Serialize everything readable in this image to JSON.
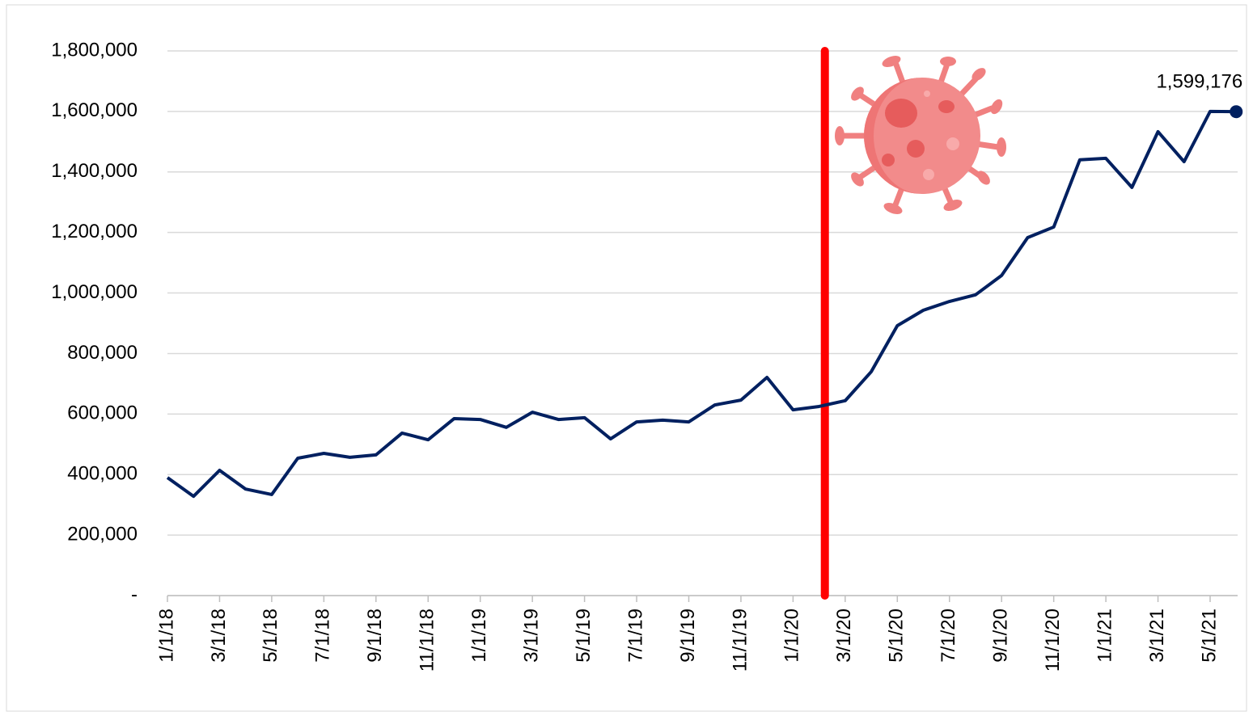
{
  "chart_data": {
    "type": "line",
    "categories": [
      "1/1/18",
      null,
      "3/1/18",
      null,
      "5/1/18",
      null,
      "7/1/18",
      null,
      "9/1/18",
      null,
      "11/1/18",
      null,
      "1/1/19",
      null,
      "3/1/19",
      null,
      "5/1/19",
      null,
      "7/1/19",
      null,
      "9/1/19",
      null,
      "11/1/19",
      null,
      "1/1/20",
      null,
      "3/1/20",
      null,
      "5/1/20",
      null,
      "7/1/20",
      null,
      "9/1/20",
      null,
      "11/1/20",
      null,
      "1/1/21",
      null,
      "3/1/21",
      null,
      "5/1/21",
      null
    ],
    "series": [
      {
        "name": null,
        "color": "#002060",
        "values": [
          390000,
          328000,
          414000,
          352000,
          334000,
          454000,
          470000,
          457000,
          465000,
          537000,
          515000,
          585000,
          582000,
          556000,
          606000,
          582000,
          588000,
          518000,
          574000,
          580000,
          574000,
          630000,
          646000,
          721000,
          614000,
          625000,
          644000,
          740000,
          892000,
          943000,
          972000,
          994000,
          1058000,
          1183000,
          1218000,
          1440000,
          1445000,
          1349000,
          1533000,
          1434000,
          1600000,
          1599176
        ],
        "value_labels": [
          null,
          null,
          null,
          null,
          null,
          null,
          null,
          null,
          null,
          null,
          null,
          null,
          null,
          null,
          null,
          null,
          null,
          null,
          null,
          null,
          null,
          null,
          null,
          null,
          null,
          null,
          null,
          null,
          null,
          null,
          null,
          null,
          null,
          null,
          null,
          null,
          null,
          null,
          null,
          null,
          null,
          "1,599,176"
        ]
      }
    ],
    "ylim": [
      0,
      1800000
    ],
    "yticks": [
      {
        "value": 0,
        "label": "-"
      },
      {
        "value": 200000,
        "label": "200,000"
      },
      {
        "value": 400000,
        "label": "400,000"
      },
      {
        "value": 600000,
        "label": "600,000"
      },
      {
        "value": 800000,
        "label": "800,000"
      },
      {
        "value": 1000000,
        "label": "1,000,000"
      },
      {
        "value": 1200000,
        "label": "1,200,000"
      },
      {
        "value": 1400000,
        "label": "1,400,000"
      },
      {
        "value": 1600000,
        "label": "1,600,000"
      },
      {
        "value": 1800000,
        "label": "1,800,000"
      }
    ],
    "grid": true,
    "marker_line": {
      "x": 25.22,
      "color": "#ff0000"
    }
  }
}
